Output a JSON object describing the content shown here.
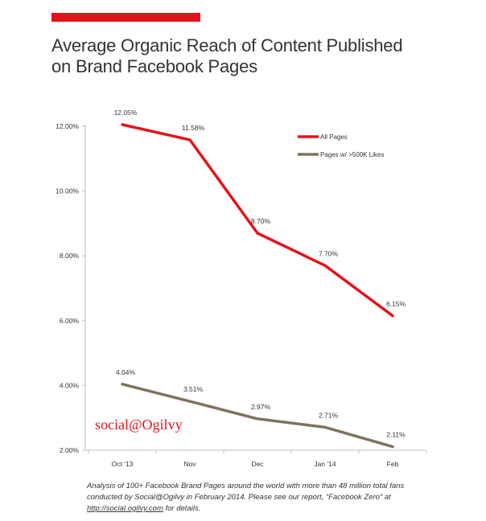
{
  "header": {
    "title": "Average Organic Reach of Content Published on Brand Facebook Pages",
    "accent_color": "#e3131b"
  },
  "brand": {
    "logo_text": "social@Ogilvy",
    "color": "#e3131b"
  },
  "footnote": {
    "text_before": "Analysis of 100+ Facebook Brand Pages around the world with more than 48 million total fans conducted by Social@Ogilvy in February 2014. Please see our report, “Facebook Zero” at ",
    "link": "http://social.ogilvy.com",
    "text_after": " for details."
  },
  "chart_data": {
    "type": "line",
    "title": "Average Organic Reach of Content Published on Brand Facebook Pages",
    "xlabel": "",
    "ylabel": "",
    "categories": [
      "Oct '13",
      "Nov",
      "Dec",
      "Jan '14",
      "Feb"
    ],
    "ylim": [
      2,
      12
    ],
    "yticks": [
      2,
      4,
      6,
      8,
      10,
      12
    ],
    "ytick_labels": [
      "2.00%",
      "4.00%",
      "6.00%",
      "8.00%",
      "10.00%",
      "12.00%"
    ],
    "grid": false,
    "legend_position": "top-right",
    "series": [
      {
        "name": "All Pages",
        "color": "#e3131b",
        "values": [
          12.05,
          11.58,
          8.7,
          7.7,
          6.15
        ],
        "labels": [
          "12.05%",
          "11.58%",
          "8.70%",
          "7.70%",
          "6.15%"
        ]
      },
      {
        "name": "Pages w/ >500K Likes",
        "color": "#7f7261",
        "values": [
          4.04,
          3.51,
          2.97,
          2.71,
          2.11
        ],
        "labels": [
          "4.04%",
          "3.51%",
          "2.97%",
          "2.71%",
          "2.11%"
        ]
      }
    ]
  }
}
